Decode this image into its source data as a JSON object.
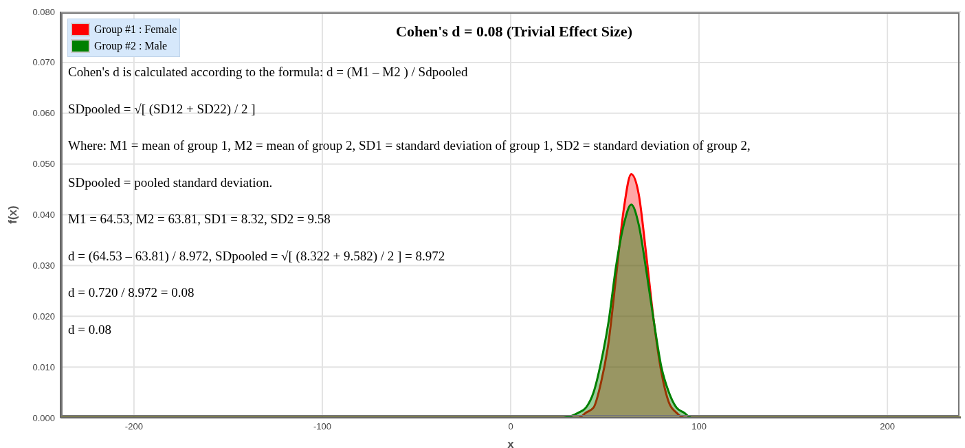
{
  "chart_data": {
    "type": "area",
    "title": "Cohen's d = 0.08 (Trivial Effect Size)",
    "xlabel": "x",
    "ylabel": "f(x)",
    "x": [
      -239,
      20,
      28,
      36,
      40,
      44,
      48,
      52,
      56,
      60,
      64,
      68,
      72,
      76,
      80,
      84,
      88,
      92,
      96,
      100,
      108,
      239
    ],
    "series": [
      {
        "name": "Group #1 : Female",
        "color": "#ff0000",
        "values": [
          0,
          0,
          0,
          0,
          0.001,
          0.002,
          0.007,
          0.015,
          0.028,
          0.041,
          0.048,
          0.044,
          0.032,
          0.019,
          0.009,
          0.003,
          0.001,
          0,
          0,
          0,
          0,
          0
        ]
      },
      {
        "name": "Group #2 : Male",
        "color": "#008000",
        "values": [
          0,
          0,
          0,
          0.001,
          0.002,
          0.005,
          0.011,
          0.019,
          0.03,
          0.038,
          0.042,
          0.038,
          0.029,
          0.019,
          0.01,
          0.005,
          0.002,
          0.001,
          0,
          0,
          0,
          0
        ]
      }
    ],
    "xlim": [
      -239,
      239
    ],
    "xticks": [
      -200,
      -100,
      0,
      100,
      200
    ],
    "ylim": [
      0,
      0.08
    ],
    "yticks": [
      {
        "value": 0,
        "label": "0.000"
      },
      {
        "value": 0.01,
        "label": "0.010"
      },
      {
        "value": 0.02,
        "label": "0.020"
      },
      {
        "value": 0.03,
        "label": "0.030"
      },
      {
        "value": 0.04,
        "label": "0.040"
      },
      {
        "value": 0.05,
        "label": "0.050"
      },
      {
        "value": 0.06,
        "label": "0.060"
      },
      {
        "value": 0.07,
        "label": "0.070"
      },
      {
        "value": 0.08,
        "label": "0.080"
      }
    ],
    "grid": true,
    "legend": "top left",
    "annotations": [
      "Cohen's d is calculated according to the formula: d = (M1 – M2 ) / Sdpooled",
      "SDpooled = √[ (SD12 + SD22) / 2 ]",
      "Where: M1 = mean of group 1, M2 = mean of group 2, SD1 = standard deviation of group 1, SD2 = standard deviation of group 2,",
      "SDpooled = pooled standard deviation.",
      "M1 = 64.53, M2 = 63.81, SD1 = 8.32, SD2 = 9.58",
      "d = (64.53 – 63.81) / 8.972, SDpooled = √[ (8.322 + 9.582) / 2 ] = 8.972",
      "d = 0.720 / 8.972 = 0.08",
      "d = 0.08"
    ]
  }
}
